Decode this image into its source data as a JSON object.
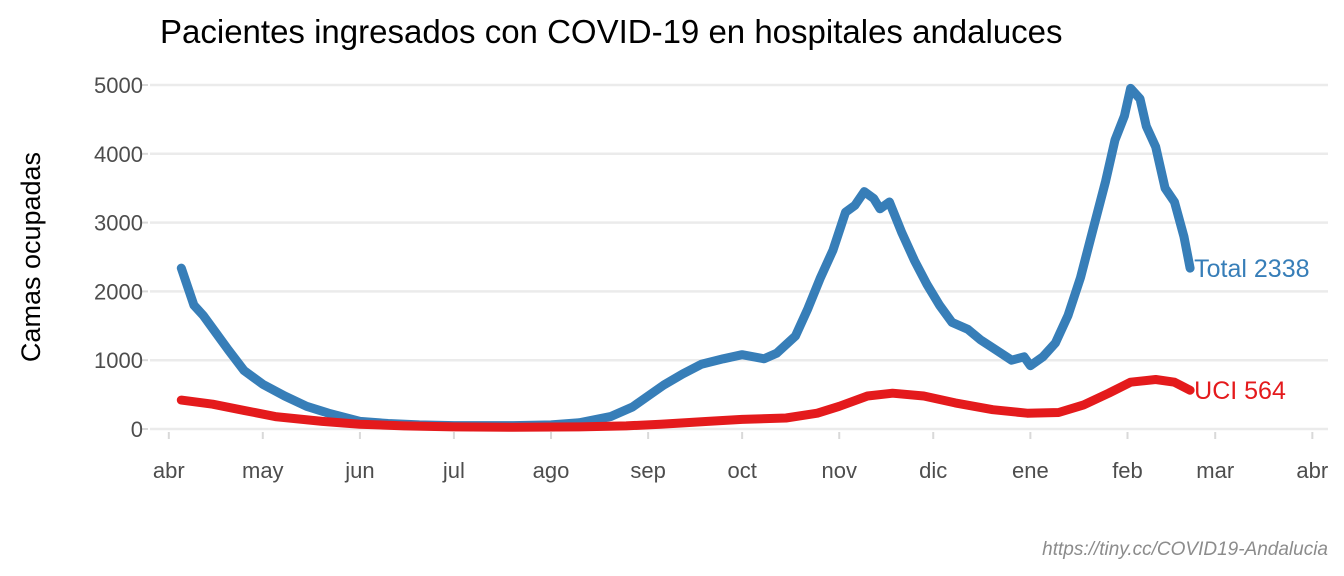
{
  "chart_data": {
    "type": "line",
    "title": "Pacientes ingresados con COVID-19 en hospitales andaluces",
    "xlabel": "",
    "ylabel": "Camas ocupadas",
    "caption": "https://tiny.cc/COVID19-Andalucia",
    "ylim": [
      0,
      5000
    ],
    "yticks": [
      0,
      1000,
      2000,
      3000,
      4000,
      5000
    ],
    "xlim": [
      "2020-03-26",
      "2021-04-06"
    ],
    "xticks": [
      {
        "date": "2020-04-01",
        "label": "abr"
      },
      {
        "date": "2020-05-01",
        "label": "may"
      },
      {
        "date": "2020-06-01",
        "label": "jun"
      },
      {
        "date": "2020-07-01",
        "label": "jul"
      },
      {
        "date": "2020-08-01",
        "label": "ago"
      },
      {
        "date": "2020-09-01",
        "label": "sep"
      },
      {
        "date": "2020-10-01",
        "label": "oct"
      },
      {
        "date": "2020-11-01",
        "label": "nov"
      },
      {
        "date": "2020-12-01",
        "label": "dic"
      },
      {
        "date": "2021-01-01",
        "label": "ene"
      },
      {
        "date": "2021-02-01",
        "label": "feb"
      },
      {
        "date": "2021-03-01",
        "label": "mar"
      },
      {
        "date": "2021-04-01",
        "label": "abr"
      }
    ],
    "grid": true,
    "legend": "none",
    "series": [
      {
        "name": "Total",
        "color": "#377eb8",
        "end_label": "Total 2338",
        "points": [
          [
            "2020-04-05",
            2338
          ],
          [
            "2020-04-09",
            1800
          ],
          [
            "2020-04-12",
            1650
          ],
          [
            "2020-04-16",
            1400
          ],
          [
            "2020-04-20",
            1150
          ],
          [
            "2020-04-25",
            850
          ],
          [
            "2020-05-01",
            650
          ],
          [
            "2020-05-08",
            480
          ],
          [
            "2020-05-15",
            330
          ],
          [
            "2020-05-22",
            230
          ],
          [
            "2020-06-01",
            110
          ],
          [
            "2020-06-10",
            80
          ],
          [
            "2020-06-20",
            60
          ],
          [
            "2020-07-01",
            50
          ],
          [
            "2020-07-10",
            50
          ],
          [
            "2020-07-20",
            50
          ],
          [
            "2020-08-01",
            60
          ],
          [
            "2020-08-10",
            90
          ],
          [
            "2020-08-20",
            180
          ],
          [
            "2020-08-27",
            320
          ],
          [
            "2020-09-01",
            480
          ],
          [
            "2020-09-06",
            640
          ],
          [
            "2020-09-12",
            800
          ],
          [
            "2020-09-18",
            940
          ],
          [
            "2020-09-25",
            1020
          ],
          [
            "2020-10-01",
            1080
          ],
          [
            "2020-10-08",
            1020
          ],
          [
            "2020-10-12",
            1100
          ],
          [
            "2020-10-18",
            1350
          ],
          [
            "2020-10-22",
            1750
          ],
          [
            "2020-10-26",
            2200
          ],
          [
            "2020-10-30",
            2600
          ],
          [
            "2020-11-03",
            3150
          ],
          [
            "2020-11-06",
            3250
          ],
          [
            "2020-11-09",
            3450
          ],
          [
            "2020-11-12",
            3350
          ],
          [
            "2020-11-14",
            3200
          ],
          [
            "2020-11-17",
            3300
          ],
          [
            "2020-11-21",
            2850
          ],
          [
            "2020-11-25",
            2450
          ],
          [
            "2020-11-29",
            2100
          ],
          [
            "2020-12-03",
            1800
          ],
          [
            "2020-12-07",
            1550
          ],
          [
            "2020-12-12",
            1450
          ],
          [
            "2020-12-16",
            1300
          ],
          [
            "2020-12-21",
            1150
          ],
          [
            "2020-12-26",
            1000
          ],
          [
            "2020-12-30",
            1050
          ],
          [
            "2021-01-01",
            920
          ],
          [
            "2021-01-05",
            1050
          ],
          [
            "2021-01-09",
            1250
          ],
          [
            "2021-01-13",
            1650
          ],
          [
            "2021-01-17",
            2200
          ],
          [
            "2021-01-21",
            2900
          ],
          [
            "2021-01-25",
            3600
          ],
          [
            "2021-01-28",
            4200
          ],
          [
            "2021-01-31",
            4550
          ],
          [
            "2021-02-02",
            4950
          ],
          [
            "2021-02-05",
            4800
          ],
          [
            "2021-02-07",
            4400
          ],
          [
            "2021-02-10",
            4100
          ],
          [
            "2021-02-13",
            3500
          ],
          [
            "2021-02-16",
            3300
          ],
          [
            "2021-02-19",
            2800
          ],
          [
            "2021-02-21",
            2338
          ]
        ]
      },
      {
        "name": "UCI",
        "color": "#e41a1c",
        "end_label": "UCI 564",
        "points": [
          [
            "2020-04-05",
            420
          ],
          [
            "2020-04-15",
            360
          ],
          [
            "2020-04-25",
            270
          ],
          [
            "2020-05-05",
            180
          ],
          [
            "2020-05-20",
            110
          ],
          [
            "2020-06-01",
            70
          ],
          [
            "2020-06-15",
            45
          ],
          [
            "2020-07-01",
            30
          ],
          [
            "2020-07-20",
            25
          ],
          [
            "2020-08-10",
            30
          ],
          [
            "2020-08-25",
            45
          ],
          [
            "2020-09-05",
            70
          ],
          [
            "2020-09-20",
            110
          ],
          [
            "2020-10-01",
            140
          ],
          [
            "2020-10-15",
            160
          ],
          [
            "2020-10-25",
            230
          ],
          [
            "2020-11-01",
            330
          ],
          [
            "2020-11-10",
            480
          ],
          [
            "2020-11-18",
            520
          ],
          [
            "2020-11-28",
            480
          ],
          [
            "2020-12-08",
            380
          ],
          [
            "2020-12-20",
            280
          ],
          [
            "2020-12-31",
            230
          ],
          [
            "2021-01-10",
            240
          ],
          [
            "2021-01-18",
            350
          ],
          [
            "2021-01-26",
            520
          ],
          [
            "2021-02-02",
            680
          ],
          [
            "2021-02-10",
            720
          ],
          [
            "2021-02-16",
            680
          ],
          [
            "2021-02-21",
            564
          ]
        ]
      }
    ]
  }
}
